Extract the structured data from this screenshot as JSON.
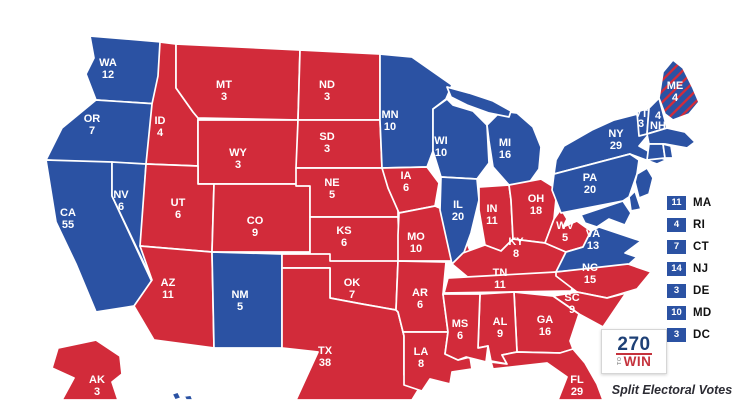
{
  "colors": {
    "dem": "#2b52a3",
    "rep": "#d22b3a",
    "border": "#ffffff"
  },
  "map": {
    "states": [
      {
        "abbr": "WA",
        "ev": "12",
        "party": "dem"
      },
      {
        "abbr": "OR",
        "ev": "7",
        "party": "dem"
      },
      {
        "abbr": "CA",
        "ev": "55",
        "party": "dem"
      },
      {
        "abbr": "NV",
        "ev": "6",
        "party": "dem"
      },
      {
        "abbr": "ID",
        "ev": "4",
        "party": "rep"
      },
      {
        "abbr": "MT",
        "ev": "3",
        "party": "rep"
      },
      {
        "abbr": "WY",
        "ev": "3",
        "party": "rep"
      },
      {
        "abbr": "UT",
        "ev": "6",
        "party": "rep"
      },
      {
        "abbr": "CO",
        "ev": "9",
        "party": "rep"
      },
      {
        "abbr": "AZ",
        "ev": "11",
        "party": "rep"
      },
      {
        "abbr": "NM",
        "ev": "5",
        "party": "dem"
      },
      {
        "abbr": "ND",
        "ev": "3",
        "party": "rep"
      },
      {
        "abbr": "SD",
        "ev": "3",
        "party": "rep"
      },
      {
        "abbr": "NE",
        "ev": "5",
        "party": "rep"
      },
      {
        "abbr": "KS",
        "ev": "6",
        "party": "rep"
      },
      {
        "abbr": "OK",
        "ev": "7",
        "party": "rep"
      },
      {
        "abbr": "TX",
        "ev": "38",
        "party": "rep"
      },
      {
        "abbr": "MN",
        "ev": "10",
        "party": "dem"
      },
      {
        "abbr": "IA",
        "ev": "6",
        "party": "rep"
      },
      {
        "abbr": "MO",
        "ev": "10",
        "party": "rep"
      },
      {
        "abbr": "AR",
        "ev": "6",
        "party": "rep"
      },
      {
        "abbr": "LA",
        "ev": "8",
        "party": "rep"
      },
      {
        "abbr": "WI",
        "ev": "10",
        "party": "dem"
      },
      {
        "abbr": "IL",
        "ev": "20",
        "party": "dem"
      },
      {
        "abbr": "MI",
        "ev": "16",
        "party": "dem"
      },
      {
        "abbr": "IN",
        "ev": "11",
        "party": "rep"
      },
      {
        "abbr": "OH",
        "ev": "18",
        "party": "rep"
      },
      {
        "abbr": "KY",
        "ev": "8",
        "party": "rep"
      },
      {
        "abbr": "TN",
        "ev": "11",
        "party": "rep"
      },
      {
        "abbr": "WV",
        "ev": "5",
        "party": "rep"
      },
      {
        "abbr": "VA",
        "ev": "13",
        "party": "dem"
      },
      {
        "abbr": "NC",
        "ev": "15",
        "party": "rep"
      },
      {
        "abbr": "SC",
        "ev": "9",
        "party": "rep"
      },
      {
        "abbr": "GA",
        "ev": "16",
        "party": "rep"
      },
      {
        "abbr": "AL",
        "ev": "9",
        "party": "rep"
      },
      {
        "abbr": "MS",
        "ev": "6",
        "party": "rep"
      },
      {
        "abbr": "FL",
        "ev": "29",
        "party": "rep"
      },
      {
        "abbr": "NY",
        "ev": "29",
        "party": "dem"
      },
      {
        "abbr": "PA",
        "ev": "20",
        "party": "dem"
      },
      {
        "abbr": "VT",
        "ev": "3",
        "party": "dem"
      },
      {
        "abbr": "NH",
        "ev": "4",
        "party": "dem"
      },
      {
        "abbr": "ME",
        "ev": "4",
        "party": "split"
      },
      {
        "abbr": "AK",
        "ev": "3",
        "party": "rep"
      },
      {
        "abbr": "MA",
        "party": "dem"
      },
      {
        "abbr": "CT",
        "party": "dem"
      },
      {
        "abbr": "RI",
        "party": "dem"
      },
      {
        "abbr": "NJ",
        "party": "dem"
      },
      {
        "abbr": "DE",
        "party": "dem"
      },
      {
        "abbr": "MD",
        "party": "dem"
      },
      {
        "abbr": "HI",
        "party": "dem"
      }
    ]
  },
  "legend": {
    "items": [
      {
        "ev": "11",
        "abbr": "MA"
      },
      {
        "ev": "4",
        "abbr": "RI"
      },
      {
        "ev": "7",
        "abbr": "CT"
      },
      {
        "ev": "14",
        "abbr": "NJ"
      },
      {
        "ev": "3",
        "abbr": "DE"
      },
      {
        "ev": "10",
        "abbr": "MD"
      },
      {
        "ev": "3",
        "abbr": "DC"
      }
    ]
  },
  "logo": {
    "number": "270",
    "to": "TO",
    "win": "WIN"
  },
  "footer": {
    "split_votes_label": "Split Electoral Votes"
  }
}
